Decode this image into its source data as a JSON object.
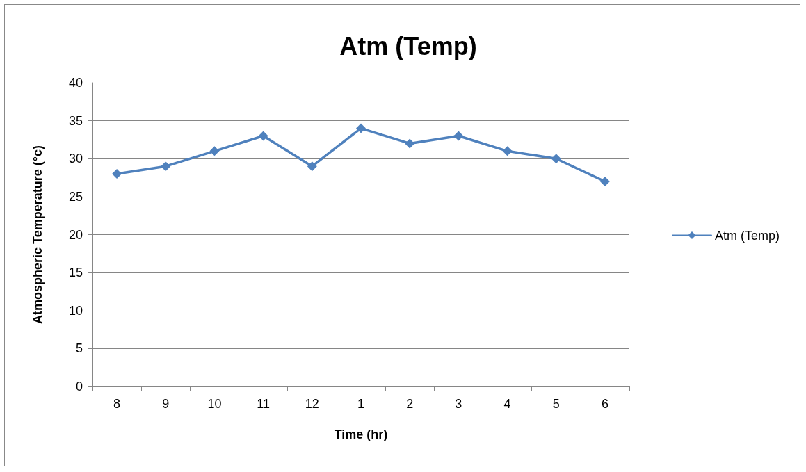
{
  "chart_data": {
    "type": "line",
    "title": "Atm (Temp)",
    "xlabel": "Time (hr)",
    "ylabel": "Atmospheric Temperature (°c)",
    "categories": [
      "8",
      "9",
      "10",
      "11",
      "12",
      "1",
      "2",
      "3",
      "4",
      "5",
      "6"
    ],
    "series": [
      {
        "name": "Atm (Temp)",
        "color": "#4f81bd",
        "values": [
          28,
          29,
          31,
          33,
          29,
          34,
          32,
          33,
          31,
          30,
          27
        ]
      }
    ],
    "ylim": [
      0,
      40
    ],
    "yticks": [
      0,
      5,
      10,
      15,
      20,
      25,
      30,
      35,
      40
    ],
    "grid": "y",
    "legend": "right",
    "marker": "diamond",
    "line_style": "solid"
  }
}
